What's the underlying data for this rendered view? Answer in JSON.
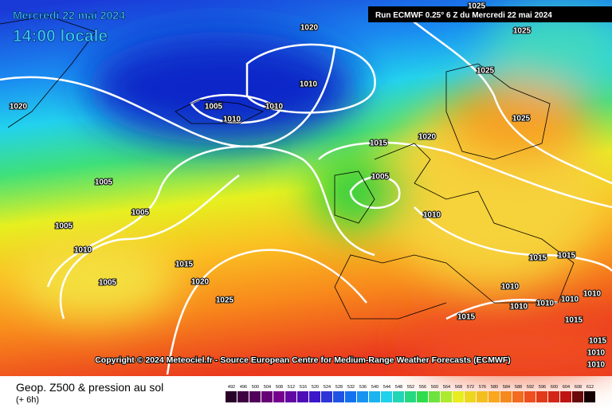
{
  "header": {
    "date": "Mercredi 22 mai 2024",
    "time": "14:00 locale",
    "run": "Run ECMWF 0.25° 6 Z du Mercredi 22 mai 2024"
  },
  "map": {
    "copyright": "Copyright © 2024 Meteociel.fr - Source European Centre for Medium-Range Weather Forecasts (ECMWF)",
    "isobar_labels": [
      "1025",
      "1020",
      "1025",
      "1010",
      "1025",
      "1005",
      "1010",
      "1010",
      "1020",
      "1025",
      "1015",
      "1020",
      "1005",
      "1005",
      "1005",
      "1010",
      "1005",
      "1010",
      "1015",
      "1015",
      "1015",
      "1005",
      "1020",
      "1025",
      "1010",
      "1010",
      "1010",
      "1010",
      "1010",
      "1015",
      "1015",
      "1015",
      "1010",
      "1010"
    ]
  },
  "footer": {
    "title": "Geop. Z500 & pression au sol",
    "lead": "(+ 6h)",
    "scale": [
      "492",
      "496",
      "500",
      "504",
      "508",
      "512",
      "516",
      "520",
      "524",
      "528",
      "532",
      "536",
      "540",
      "544",
      "548",
      "552",
      "556",
      "560",
      "564",
      "568",
      "572",
      "576",
      "580",
      "584",
      "588",
      "592",
      "596",
      "600",
      "604",
      "608",
      "612"
    ]
  }
}
